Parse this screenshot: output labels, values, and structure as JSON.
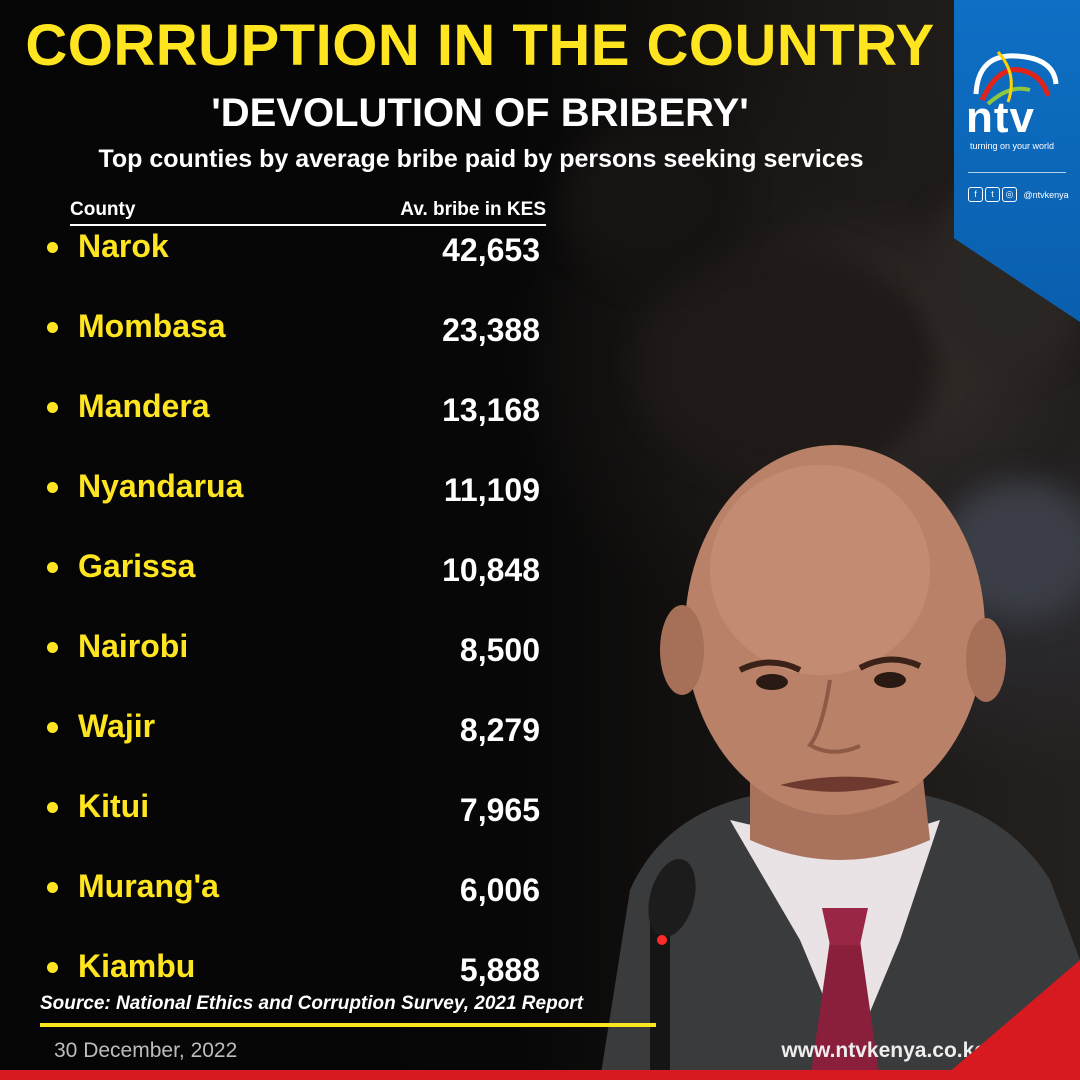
{
  "headline": "CORRUPTION IN THE COUNTRY",
  "subheadline": "'DEVOLUTION OF BRIBERY'",
  "description": "Top counties by average bribe paid by persons seeking services",
  "table_headers": {
    "county": "County",
    "value": "Av. bribe in KES"
  },
  "chart_data": {
    "type": "table",
    "title": "Top counties by average bribe paid by persons seeking services",
    "columns": [
      "County",
      "Av. bribe in KES"
    ],
    "rows": [
      {
        "county": "Narok",
        "value": "42,653"
      },
      {
        "county": "Mombasa",
        "value": "23,388"
      },
      {
        "county": "Mandera",
        "value": "13,168"
      },
      {
        "county": "Nyandarua",
        "value": "11,109"
      },
      {
        "county": "Garissa",
        "value": "10,848"
      },
      {
        "county": "Nairobi",
        "value": "8,500"
      },
      {
        "county": "Wajir",
        "value": "8,279"
      },
      {
        "county": "Kitui",
        "value": "7,965"
      },
      {
        "county": "Murang'a",
        "value": "6,006"
      },
      {
        "county": "Kiambu",
        "value": "5,888"
      }
    ]
  },
  "source": "Source: National Ethics and Corruption Survey, 2021 Report",
  "date": "30 December, 2022",
  "website": "www.ntvkenya.co.ke",
  "logo": {
    "brand": "ntv",
    "tagline": "turning on your world",
    "social_handle": "@ntvkenya",
    "social_icons": [
      "facebook-icon",
      "twitter-icon",
      "instagram-icon"
    ]
  },
  "colors": {
    "accent_yellow": "#ffe51f",
    "brand_blue": "#0e6fc4",
    "brand_red": "#d71920",
    "background": "#050505"
  }
}
